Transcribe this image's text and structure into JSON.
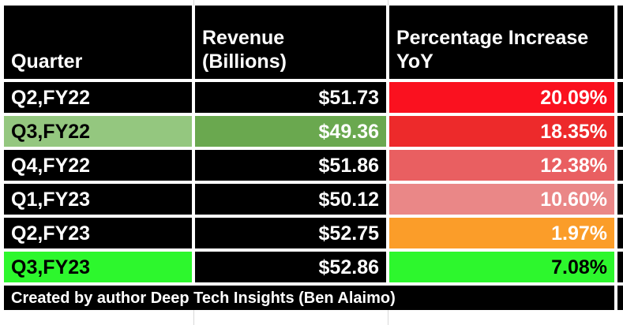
{
  "colors": {
    "cell_black": "#000000",
    "text_white": "#ffffff",
    "text_black": "#000000",
    "red_bright": "#fa111f",
    "red_medium": "#ed2a2b",
    "red_light": "#e95f61",
    "red_pale": "#ea8787",
    "orange": "#fb9d29",
    "green_bright": "#2df72d",
    "green_light": "#94c77f",
    "green_dark": "#6aa84f",
    "gridline_gray": "#d9d9d9"
  },
  "table": {
    "headers": [
      {
        "text": "Quarter"
      },
      {
        "text": "Revenue\n(Billions)"
      },
      {
        "text": "Percentage Increase\nYoY"
      }
    ],
    "rows": [
      {
        "cells": [
          {
            "text": "Q2,FY22",
            "bg": "#000000",
            "fg": "#ffffff"
          },
          {
            "text": "$51.73",
            "bg": "#000000",
            "fg": "#ffffff"
          },
          {
            "text": "20.09%",
            "bg": "#fa111f",
            "fg": "#ffffff"
          }
        ]
      },
      {
        "cells": [
          {
            "text": "Q3,FY22",
            "bg": "#94c77f",
            "fg": "#000000"
          },
          {
            "text": "$49.36",
            "bg": "#6aa84f",
            "fg": "#ffffff"
          },
          {
            "text": "18.35%",
            "bg": "#ed2a2b",
            "fg": "#ffffff"
          }
        ]
      },
      {
        "cells": [
          {
            "text": "Q4,FY22",
            "bg": "#000000",
            "fg": "#ffffff"
          },
          {
            "text": "$51.86",
            "bg": "#000000",
            "fg": "#ffffff"
          },
          {
            "text": "12.38%",
            "bg": "#e95f61",
            "fg": "#ffffff"
          }
        ]
      },
      {
        "cells": [
          {
            "text": "Q1,FY23",
            "bg": "#000000",
            "fg": "#ffffff"
          },
          {
            "text": "$50.12",
            "bg": "#000000",
            "fg": "#ffffff"
          },
          {
            "text": "10.60%",
            "bg": "#ea8787",
            "fg": "#ffffff"
          }
        ]
      },
      {
        "cells": [
          {
            "text": "Q2,FY23",
            "bg": "#000000",
            "fg": "#ffffff"
          },
          {
            "text": "$52.75",
            "bg": "#000000",
            "fg": "#ffffff"
          },
          {
            "text": "1.97%",
            "bg": "#fb9d29",
            "fg": "#ffffff"
          }
        ]
      },
      {
        "cells": [
          {
            "text": "Q3,FY23",
            "bg": "#2df72d",
            "fg": "#000000"
          },
          {
            "text": "$52.86",
            "bg": "#000000",
            "fg": "#ffffff"
          },
          {
            "text": "7.08%",
            "bg": "#2df72d",
            "fg": "#000000"
          }
        ]
      }
    ],
    "footer": "Created by author Deep Tech Insights (Ben Alaimo)"
  },
  "chart_data": {
    "type": "table",
    "title": "",
    "columns": [
      "Quarter",
      "Revenue (Billions)",
      "Percentage Increase YoY"
    ],
    "rows": [
      [
        "Q2,FY22",
        51.73,
        20.09
      ],
      [
        "Q3,FY22",
        49.36,
        18.35
      ],
      [
        "Q4,FY22",
        51.86,
        12.38
      ],
      [
        "Q1,FY23",
        50.12,
        10.6
      ],
      [
        "Q2,FY23",
        52.75,
        1.97
      ],
      [
        "Q3,FY23",
        52.86,
        7.08
      ]
    ],
    "revenue_unit": "USD billions",
    "yoy_unit": "percent",
    "note": "Created by author Deep Tech Insights (Ben Alaimo)"
  }
}
